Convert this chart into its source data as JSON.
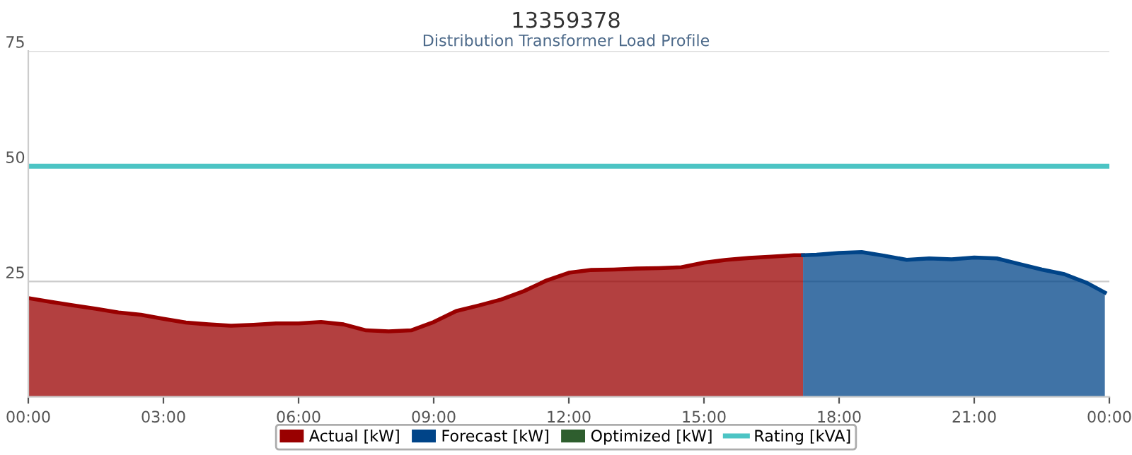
{
  "chart_data": {
    "type": "area",
    "title": "13359378",
    "subtitle": "Distribution Transformer Load Profile",
    "xlim": [
      0,
      24
    ],
    "ylim": [
      0,
      75
    ],
    "yticks": [
      25,
      50,
      75
    ],
    "xticks": [
      {
        "value": 0,
        "label": "00:00"
      },
      {
        "value": 3,
        "label": "03:00"
      },
      {
        "value": 6,
        "label": "06:00"
      },
      {
        "value": 9,
        "label": "09:00"
      },
      {
        "value": 12,
        "label": "12:00"
      },
      {
        "value": 15,
        "label": "15:00"
      },
      {
        "value": 18,
        "label": "18:00"
      },
      {
        "value": 21,
        "label": "21:00"
      },
      {
        "value": 24,
        "label": "00:00"
      }
    ],
    "grid": "y",
    "legend": "bottom",
    "series": [
      {
        "name": "Actual [kW]",
        "color": "#990000",
        "x": [
          0,
          0.5,
          1,
          1.5,
          2,
          2.5,
          3,
          3.5,
          4,
          4.5,
          5,
          5.5,
          6,
          6.5,
          7,
          7.5,
          8,
          8.5,
          9,
          9.5,
          10,
          10.5,
          11,
          11.5,
          12,
          12.5,
          13,
          13.5,
          14,
          14.5,
          15,
          15.5,
          16,
          16.5,
          17,
          17.2
        ],
        "values": [
          21.4,
          20.6,
          19.8,
          19.1,
          18.3,
          17.8,
          16.9,
          16.1,
          15.7,
          15.4,
          15.6,
          15.9,
          15.9,
          16.2,
          15.7,
          14.4,
          14.2,
          14.4,
          16.2,
          18.6,
          19.8,
          21.1,
          22.9,
          25.2,
          26.9,
          27.5,
          27.6,
          27.8,
          27.9,
          28.1,
          29.1,
          29.7,
          30.1,
          30.4,
          30.7,
          30.7
        ]
      },
      {
        "name": "Forecast [kW]",
        "color": "#004488",
        "x": [
          17.2,
          17.5,
          18,
          18.5,
          19,
          19.5,
          20,
          20.5,
          21,
          21.5,
          22,
          22.5,
          23,
          23.5,
          23.9
        ],
        "values": [
          30.7,
          30.8,
          31.2,
          31.4,
          30.6,
          29.7,
          30.0,
          29.8,
          30.2,
          30.0,
          28.8,
          27.6,
          26.6,
          24.7,
          22.6
        ]
      },
      {
        "name": "Optimized [kW]",
        "color": "#2e5e2e"
      },
      {
        "name": "Rating [kVA]",
        "type": "line",
        "color": "#4cc4c4",
        "x": [
          0,
          24
        ],
        "values": [
          50,
          50
        ]
      }
    ]
  }
}
